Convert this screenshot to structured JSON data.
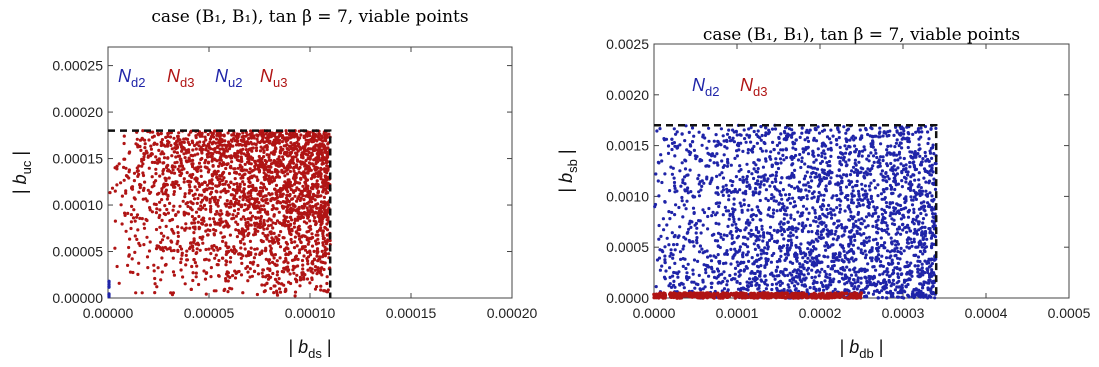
{
  "chart_data": [
    {
      "type": "scatter",
      "title": "case (B₁, B₁), tan β = 7, viable points",
      "xlabel": {
        "base": "| b",
        "sub": "ds",
        "suffix": " |"
      },
      "ylabel": {
        "base": "| b",
        "sub": "uc",
        "suffix": " |"
      },
      "xlim": [
        0,
        0.0002
      ],
      "ylim": [
        0,
        0.00027
      ],
      "xticks": [
        "0.00000",
        "0.00005",
        "0.00010",
        "0.00015",
        "0.00020"
      ],
      "xtick_values": [
        0,
        5e-05,
        0.0001,
        0.00015,
        0.0002
      ],
      "yticks": [
        "0.00000",
        "0.00005",
        "0.00010",
        "0.00015",
        "0.00020",
        "0.00025"
      ],
      "ytick_values": [
        0,
        5e-05,
        0.0001,
        0.00015,
        0.0002,
        0.00025
      ],
      "legend": [
        {
          "base": "N",
          "sub": "d2",
          "color": "#1f24a8"
        },
        {
          "base": "N",
          "sub": "d3",
          "color": "#b01414"
        },
        {
          "base": "N",
          "sub": "u2",
          "color": "#1f24a8"
        },
        {
          "base": "N",
          "sub": "u3",
          "color": "#b01414"
        }
      ],
      "bound": {
        "x_max": 0.00011,
        "y_max": 0.00018
      },
      "series": [
        {
          "name": "N_d2",
          "color": "#1f24a8",
          "region": "x=0, 0 ≤ y ≤ 0.00002"
        },
        {
          "name": "N_d3",
          "color": "#b01414",
          "region": "0 ≤ x ≤ 0.00011, 0 ≤ y ≤ 0.00018, denser toward upper right"
        }
      ]
    },
    {
      "type": "scatter",
      "title": "case (B₁, B₁), tan β = 7, viable points",
      "xlabel": {
        "base": "| b",
        "sub": "db",
        "suffix": " |"
      },
      "ylabel": {
        "base": "| b",
        "sub": "sb",
        "suffix": " |"
      },
      "xlim": [
        0,
        0.0005
      ],
      "ylim": [
        0,
        0.0025
      ],
      "xticks": [
        "0.0000",
        "0.0001",
        "0.0002",
        "0.0003",
        "0.0004",
        "0.0005"
      ],
      "xtick_values": [
        0,
        0.0001,
        0.0002,
        0.0003,
        0.0004,
        0.0005
      ],
      "yticks": [
        "0.0000",
        "0.0005",
        "0.0010",
        "0.0015",
        "0.0020",
        "0.0025"
      ],
      "ytick_values": [
        0,
        0.0005,
        0.001,
        0.0015,
        0.002,
        0.0025
      ],
      "legend": [
        {
          "base": "N",
          "sub": "d2",
          "color": "#1f24a8"
        },
        {
          "base": "N",
          "sub": "d3",
          "color": "#b01414"
        }
      ],
      "bound": {
        "x_max": 0.00034,
        "y_max": 0.0017
      },
      "series": [
        {
          "name": "N_d2",
          "color": "#1f24a8",
          "region": "0 ≤ x ≤ 0.00034, 0 ≤ y ≤ 0.0017, denser toward lower right"
        },
        {
          "name": "N_d3",
          "color": "#b01414",
          "region": "0 ≤ x ≤ 0.00025, 0 ≤ y ≤ 0.00005"
        }
      ]
    }
  ]
}
